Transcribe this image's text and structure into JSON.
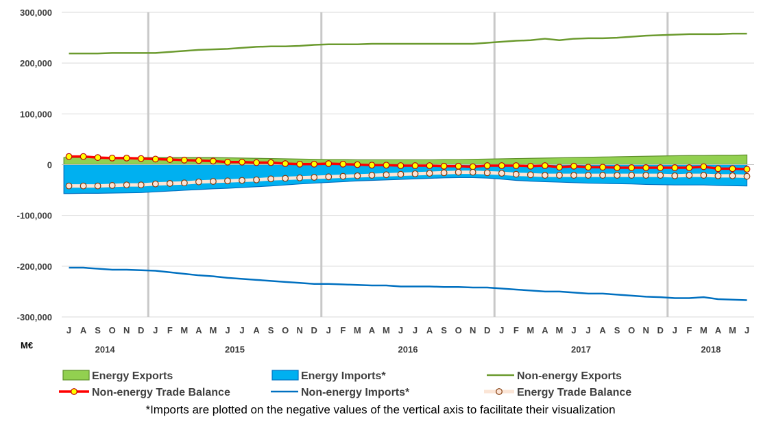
{
  "chart_data": {
    "type": "line",
    "unit_label": "M€",
    "ylim": [
      -300000,
      300000
    ],
    "y_ticks": [
      300000,
      200000,
      100000,
      0,
      -100000,
      -200000,
      -300000
    ],
    "y_tick_labels": [
      "300,000",
      "200,000",
      "100,000",
      "0",
      "-100,000",
      "-200,000",
      "-300,000"
    ],
    "grid": "horizontal",
    "legend_position": "bottom",
    "x_month_labels": [
      "J",
      "A",
      "S",
      "O",
      "N",
      "D",
      "J",
      "F",
      "M",
      "A",
      "M",
      "J",
      "J",
      "A",
      "S",
      "O",
      "N",
      "D",
      "J",
      "F",
      "M",
      "A",
      "M",
      "J",
      "J",
      "A",
      "S",
      "O",
      "N",
      "D",
      "J",
      "F",
      "M",
      "A",
      "M",
      "J",
      "J",
      "A",
      "S",
      "O",
      "N",
      "D",
      "J",
      "F",
      "M",
      "A",
      "M",
      "J"
    ],
    "years": [
      {
        "label": "2014",
        "start": 0,
        "end": 5
      },
      {
        "label": "2015",
        "start": 6,
        "end": 17
      },
      {
        "label": "2016",
        "start": 18,
        "end": 29
      },
      {
        "label": "2017",
        "start": 30,
        "end": 41
      },
      {
        "label": "2018",
        "start": 42,
        "end": 47
      }
    ],
    "year_separators_after": [
      5,
      17,
      29,
      41
    ],
    "series": [
      {
        "name": "Energy Exports",
        "kind": "area",
        "color": "#92D050",
        "edge": "#5E8F2A",
        "values": [
          14000,
          14000,
          14000,
          14000,
          14000,
          14000,
          14000,
          14000,
          14000,
          14000,
          14000,
          13500,
          13000,
          12500,
          12000,
          11500,
          11000,
          10500,
          10000,
          10000,
          9500,
          9500,
          9500,
          9500,
          9500,
          9500,
          10000,
          10000,
          10500,
          11000,
          11500,
          12000,
          12500,
          13000,
          13500,
          14000,
          14500,
          15000,
          15500,
          16000,
          16500,
          17000,
          17500,
          18000,
          18000,
          18500,
          18500,
          19000
        ]
      },
      {
        "name": "Energy Imports*",
        "kind": "area",
        "color": "#00B0F0",
        "edge": "#0070C0",
        "values": [
          -57000,
          -56500,
          -56500,
          -56000,
          -55500,
          -55000,
          -53500,
          -52000,
          -50500,
          -49000,
          -47500,
          -46500,
          -45000,
          -43500,
          -42000,
          -40000,
          -38000,
          -36500,
          -35000,
          -33500,
          -32000,
          -31000,
          -30000,
          -29000,
          -28000,
          -27000,
          -26000,
          -25500,
          -25500,
          -26500,
          -28500,
          -31000,
          -32500,
          -33500,
          -34500,
          -35500,
          -36500,
          -37000,
          -37500,
          -38000,
          -39000,
          -39500,
          -40000,
          -40000,
          -40000,
          -41000,
          -41500,
          -42000
        ]
      },
      {
        "name": "Non-energy Exports",
        "kind": "line",
        "color": "#6B9A2E",
        "values": [
          219000,
          219000,
          219000,
          220000,
          220000,
          220000,
          220000,
          222000,
          224000,
          226000,
          227000,
          228000,
          230000,
          232000,
          233000,
          233000,
          234000,
          236000,
          237000,
          237000,
          237000,
          238000,
          238000,
          238000,
          238000,
          238000,
          238000,
          238000,
          238000,
          240000,
          242000,
          244000,
          245000,
          248000,
          245000,
          248000,
          249000,
          249000,
          250000,
          252000,
          254000,
          255000,
          256000,
          257000,
          257000,
          257000,
          258000,
          258000
        ]
      },
      {
        "name": "Non-energy Imports*",
        "kind": "line",
        "color": "#0070C0",
        "values": [
          -203000,
          -203000,
          -205000,
          -207000,
          -207000,
          -208000,
          -209000,
          -212000,
          -215000,
          -218000,
          -220000,
          -223000,
          -225000,
          -227000,
          -229000,
          -231000,
          -233000,
          -235000,
          -235000,
          -236000,
          -237000,
          -238000,
          -238000,
          -240000,
          -240000,
          -240000,
          -241000,
          -241000,
          -242000,
          -242000,
          -244000,
          -246000,
          -248000,
          -250000,
          -250000,
          -252000,
          -254000,
          -254000,
          -256000,
          -258000,
          -260000,
          -261000,
          -263000,
          -263000,
          -261000,
          -265000,
          -266000,
          -267000
        ]
      },
      {
        "name": "Non-energy Trade Balance",
        "kind": "line-marker",
        "color": "#FF0000",
        "marker_fill": "#FFFF00",
        "marker_edge": "#C00000",
        "values": [
          16000,
          16000,
          14000,
          13000,
          13000,
          12000,
          11000,
          10000,
          9000,
          8000,
          7000,
          5000,
          5000,
          4000,
          4000,
          2000,
          1000,
          1000,
          2000,
          1000,
          0,
          -1000,
          -1000,
          -2000,
          -2000,
          -2000,
          -3000,
          -3000,
          -4000,
          -2000,
          -2000,
          -2000,
          -3000,
          -2000,
          -5000,
          -3000,
          -5000,
          -5000,
          -6000,
          -6000,
          -6000,
          -6000,
          -6000,
          -6000,
          -4000,
          -8000,
          -8000,
          -9000
        ]
      },
      {
        "name": "Energy Trade Balance",
        "kind": "line-marker",
        "color": "#FBE5D6",
        "marker_fill": "#FCE4D6",
        "marker_edge": "#843C0C",
        "values": [
          -42000,
          -42000,
          -42000,
          -41000,
          -40000,
          -40000,
          -38000,
          -37000,
          -36000,
          -34000,
          -33000,
          -32000,
          -31000,
          -30000,
          -28000,
          -27000,
          -26000,
          -25000,
          -24000,
          -23000,
          -22000,
          -21000,
          -20000,
          -19000,
          -18000,
          -17000,
          -16000,
          -15000,
          -15000,
          -16000,
          -17000,
          -19000,
          -20000,
          -21000,
          -21000,
          -21000,
          -21000,
          -21000,
          -21000,
          -21000,
          -21000,
          -21000,
          -22000,
          -21000,
          -21000,
          -22000,
          -22000,
          -23000
        ]
      }
    ],
    "legend_order": [
      "Energy Exports",
      "Energy Imports*",
      "Non-energy Exports",
      "Non-energy Trade Balance",
      "Non-energy Imports*",
      "Energy Trade Balance"
    ]
  },
  "footnote": "*Imports are plotted on the negative values of the vertical axis to facilitate their visualization"
}
